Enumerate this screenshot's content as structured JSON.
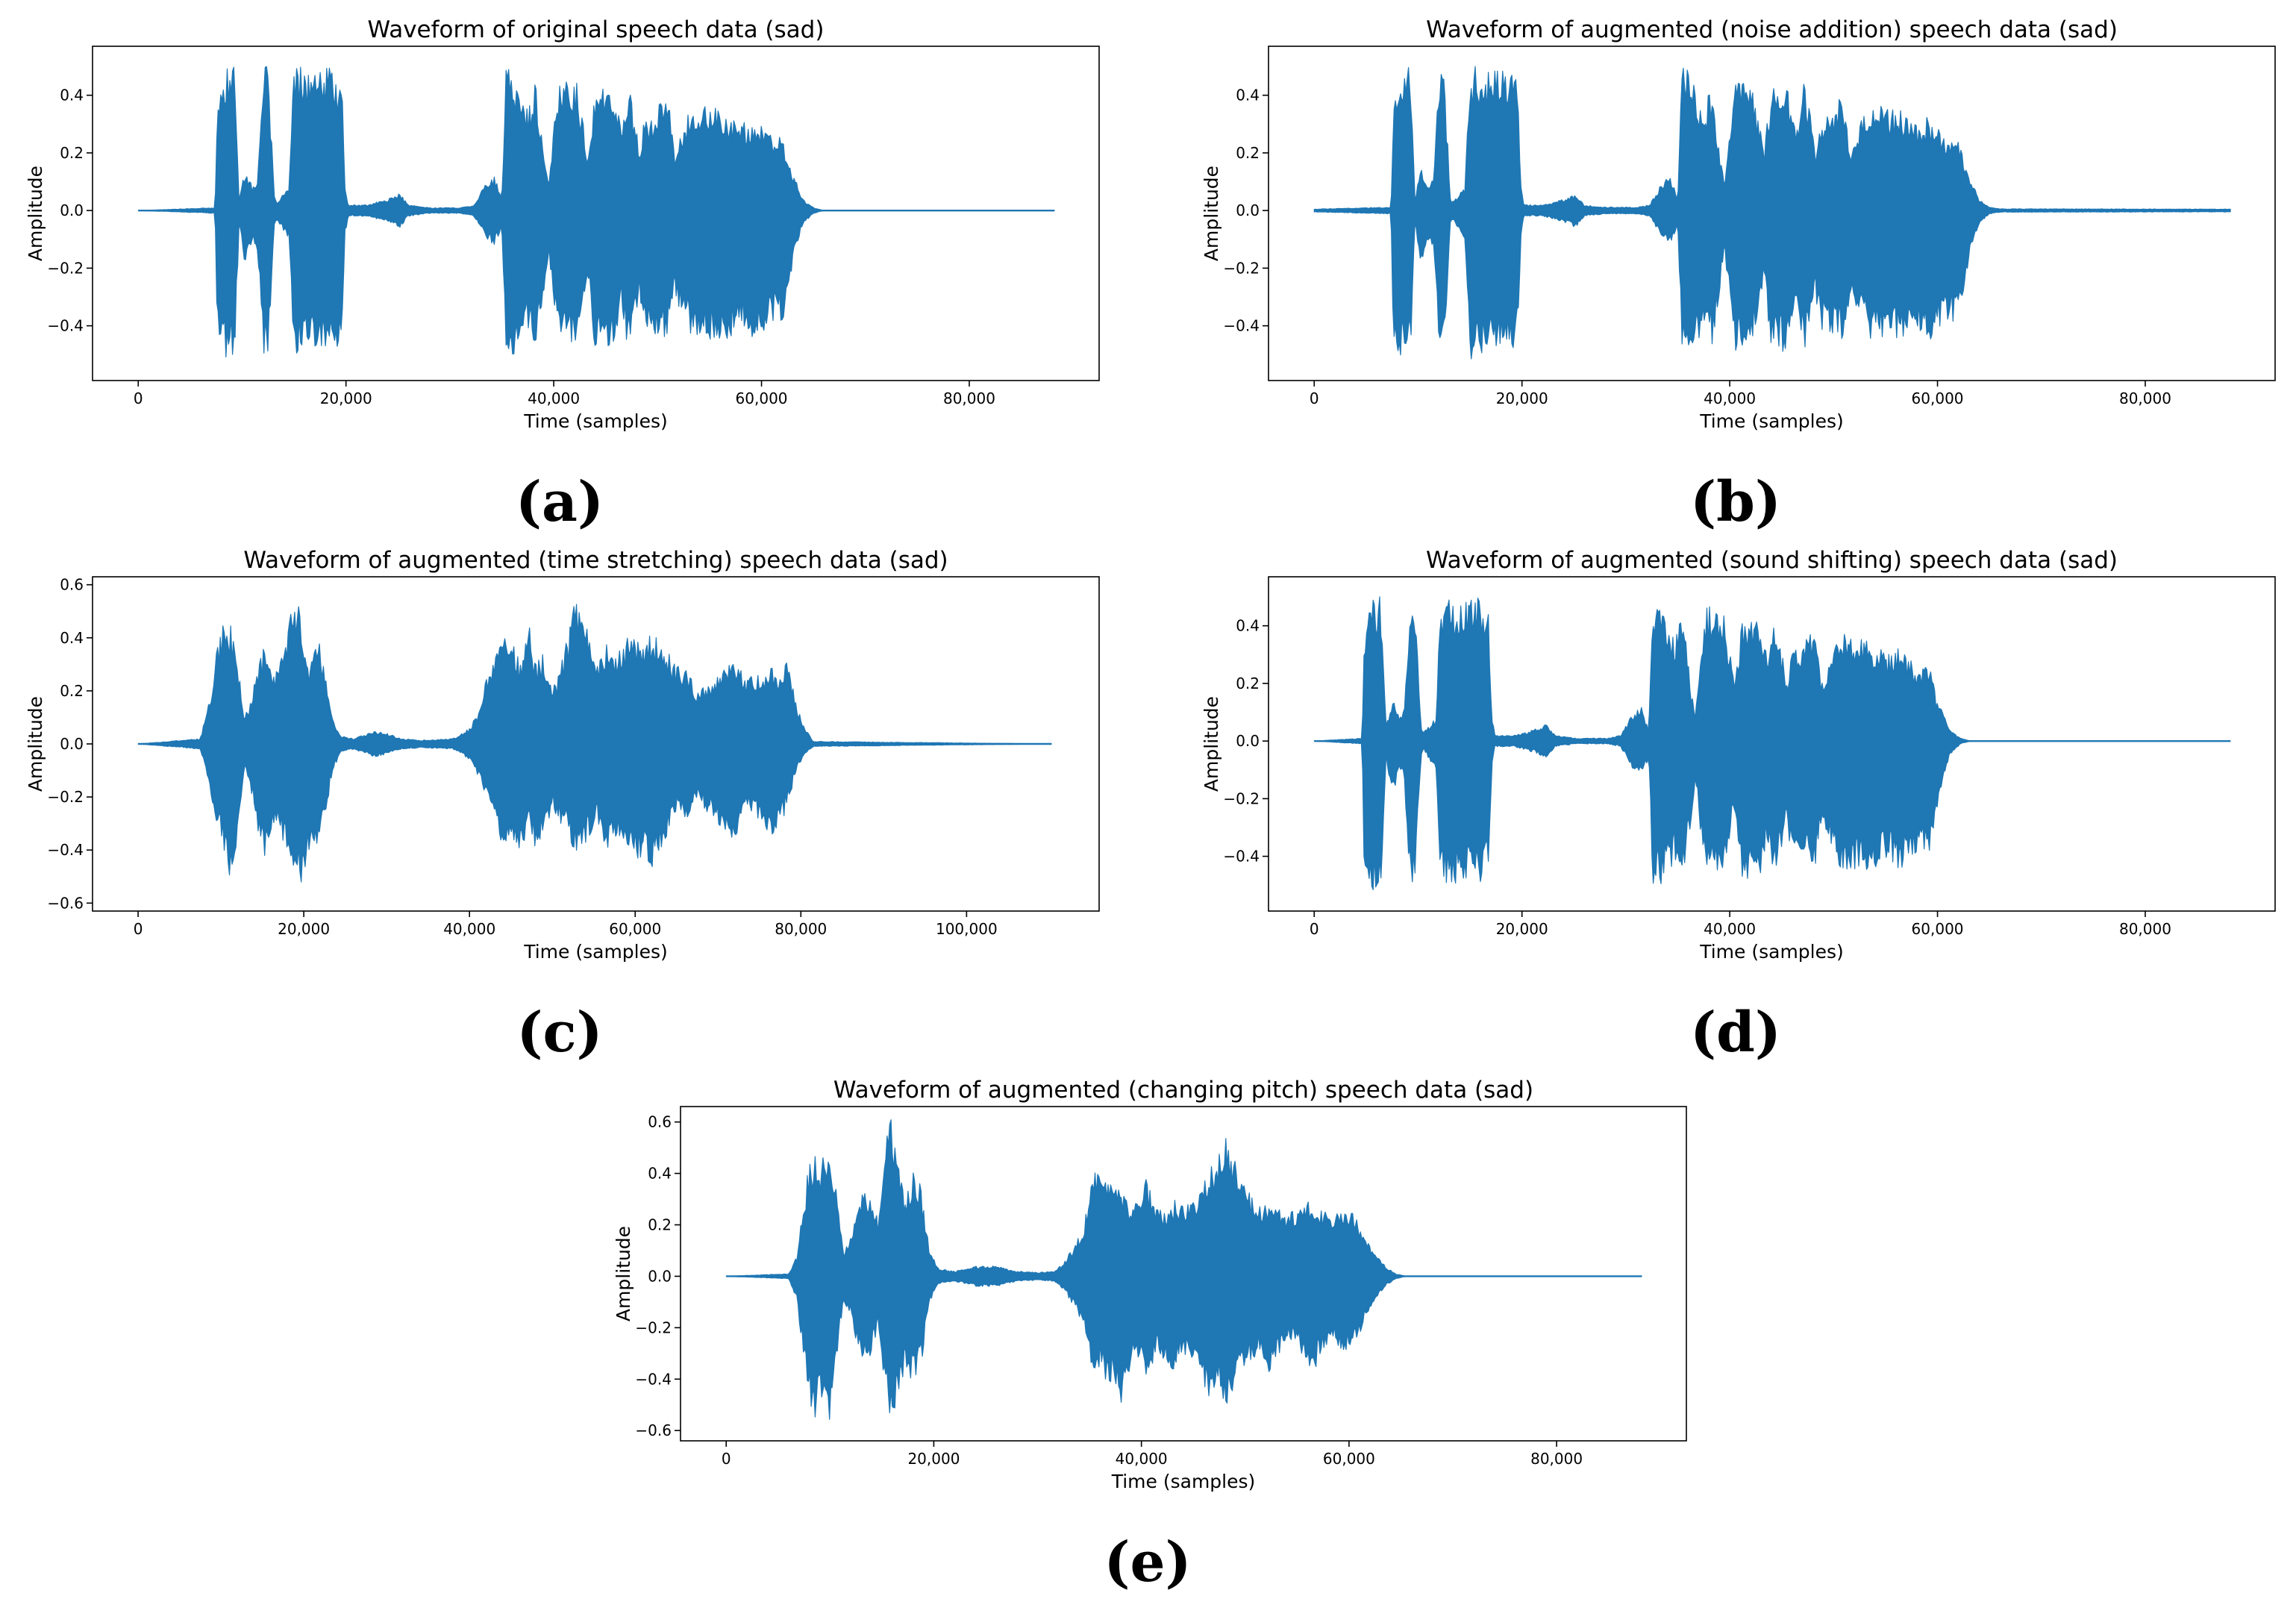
{
  "colors": {
    "wave": "#1f77b4",
    "axis": "#000000",
    "background": "#ffffff"
  },
  "chart_data": [
    {
      "id": "a",
      "type": "line",
      "panel_label": "(a)",
      "title": "Waveform of original speech data (sad)",
      "xlabel": "Time (samples)",
      "ylabel": "Amplitude",
      "xlim": [
        -4400,
        92500
      ],
      "ylim": [
        -0.59,
        0.57
      ],
      "xticks": [
        0,
        20000,
        40000,
        60000,
        80000
      ],
      "xtick_labels": [
        "0",
        "20,000",
        "40,000",
        "60,000",
        "80,000"
      ],
      "yticks": [
        -0.4,
        -0.2,
        0.0,
        0.2,
        0.4
      ],
      "ytick_labels": [
        "−0.4",
        "−0.2",
        "0.0",
        "0.2",
        "0.4"
      ],
      "series_extent": [
        0,
        88200
      ],
      "envelope_x": [
        0,
        7400,
        7600,
        8200,
        9300,
        9700,
        10300,
        11000,
        11500,
        12000,
        12500,
        13100,
        13300,
        14500,
        15000,
        15800,
        17000,
        18500,
        19600,
        19900,
        20200,
        22000,
        24000,
        25200,
        26000,
        28000,
        31000,
        32300,
        33500,
        34300,
        35000,
        35400,
        36000,
        37500,
        38300,
        39000,
        39500,
        40500,
        41500,
        42200,
        43300,
        44000,
        44500,
        45500,
        46500,
        47200,
        48300,
        48700,
        50000,
        51000,
        51600,
        52500,
        53300,
        54000,
        55000,
        56500,
        58000,
        59000,
        60300,
        61300,
        62000,
        62700,
        63200,
        64000,
        65000,
        66000,
        88200
      ],
      "envelope_upper": [
        0.0,
        0.01,
        0.33,
        0.51,
        0.5,
        0.05,
        0.15,
        0.08,
        0.12,
        0.5,
        0.5,
        0.05,
        0.03,
        0.08,
        0.5,
        0.5,
        0.48,
        0.5,
        0.45,
        0.09,
        0.02,
        0.02,
        0.04,
        0.06,
        0.02,
        0.01,
        0.01,
        0.02,
        0.1,
        0.12,
        0.04,
        0.5,
        0.5,
        0.35,
        0.46,
        0.2,
        0.1,
        0.47,
        0.46,
        0.45,
        0.2,
        0.45,
        0.42,
        0.44,
        0.3,
        0.47,
        0.2,
        0.32,
        0.36,
        0.41,
        0.2,
        0.3,
        0.36,
        0.38,
        0.36,
        0.35,
        0.3,
        0.33,
        0.28,
        0.25,
        0.27,
        0.15,
        0.12,
        0.04,
        0.01,
        0.0,
        0.0
      ],
      "envelope_lower": [
        0.0,
        -0.01,
        -0.43,
        -0.52,
        -0.51,
        -0.05,
        -0.2,
        -0.1,
        -0.15,
        -0.5,
        -0.5,
        -0.05,
        -0.03,
        -0.1,
        -0.52,
        -0.51,
        -0.48,
        -0.51,
        -0.46,
        -0.09,
        -0.02,
        -0.02,
        -0.04,
        -0.06,
        -0.02,
        -0.01,
        -0.01,
        -0.02,
        -0.1,
        -0.12,
        -0.06,
        -0.5,
        -0.51,
        -0.42,
        -0.48,
        -0.3,
        -0.15,
        -0.49,
        -0.47,
        -0.45,
        -0.25,
        -0.5,
        -0.48,
        -0.5,
        -0.35,
        -0.5,
        -0.3,
        -0.42,
        -0.44,
        -0.45,
        -0.3,
        -0.38,
        -0.44,
        -0.46,
        -0.45,
        -0.47,
        -0.4,
        -0.46,
        -0.42,
        -0.38,
        -0.4,
        -0.25,
        -0.15,
        -0.05,
        -0.01,
        0.0,
        0.0
      ]
    },
    {
      "id": "b",
      "type": "line",
      "panel_label": "(b)",
      "title": "Waveform of augmented (noise addition) speech data (sad)",
      "xlabel": "Time (samples)",
      "ylabel": "Amplitude",
      "xlim": [
        -4400,
        92500
      ],
      "ylim": [
        -0.59,
        0.57
      ],
      "xticks": [
        0,
        20000,
        40000,
        60000,
        80000
      ],
      "xtick_labels": [
        "0",
        "20,000",
        "40,000",
        "60,000",
        "80,000"
      ],
      "yticks": [
        -0.4,
        -0.2,
        0.0,
        0.2,
        0.4
      ],
      "ytick_labels": [
        "−0.4",
        "−0.2",
        "0.0",
        "0.2",
        "0.4"
      ],
      "series_extent": [
        0,
        88200
      ],
      "envelope_x": [
        0,
        7400,
        7600,
        8200,
        9300,
        9700,
        10300,
        11000,
        11500,
        12000,
        12500,
        13100,
        13300,
        14500,
        15000,
        15800,
        17000,
        18500,
        19600,
        19900,
        20200,
        22000,
        24000,
        25200,
        26000,
        28000,
        31000,
        32300,
        33500,
        34300,
        35000,
        35400,
        36000,
        37500,
        38300,
        39000,
        39500,
        40500,
        41500,
        42200,
        43300,
        44000,
        44500,
        45500,
        46500,
        47200,
        48300,
        48700,
        50000,
        51000,
        51600,
        52500,
        53300,
        54000,
        55000,
        56500,
        58000,
        59000,
        60300,
        61300,
        62000,
        62700,
        63200,
        64000,
        65000,
        66000,
        88200
      ],
      "envelope_upper": [
        0.005,
        0.012,
        0.33,
        0.51,
        0.5,
        0.05,
        0.15,
        0.08,
        0.12,
        0.5,
        0.5,
        0.05,
        0.03,
        0.08,
        0.5,
        0.5,
        0.48,
        0.5,
        0.45,
        0.09,
        0.02,
        0.02,
        0.04,
        0.06,
        0.02,
        0.012,
        0.012,
        0.02,
        0.1,
        0.12,
        0.04,
        0.5,
        0.5,
        0.35,
        0.46,
        0.2,
        0.1,
        0.47,
        0.46,
        0.45,
        0.2,
        0.45,
        0.42,
        0.44,
        0.3,
        0.47,
        0.2,
        0.32,
        0.36,
        0.41,
        0.2,
        0.3,
        0.36,
        0.38,
        0.36,
        0.35,
        0.3,
        0.33,
        0.28,
        0.25,
        0.27,
        0.15,
        0.12,
        0.04,
        0.012,
        0.006,
        0.005
      ],
      "envelope_lower": [
        -0.005,
        -0.012,
        -0.43,
        -0.52,
        -0.51,
        -0.05,
        -0.2,
        -0.1,
        -0.15,
        -0.5,
        -0.5,
        -0.05,
        -0.03,
        -0.1,
        -0.52,
        -0.51,
        -0.48,
        -0.51,
        -0.46,
        -0.09,
        -0.02,
        -0.02,
        -0.04,
        -0.06,
        -0.02,
        -0.012,
        -0.012,
        -0.02,
        -0.1,
        -0.12,
        -0.06,
        -0.5,
        -0.51,
        -0.42,
        -0.48,
        -0.3,
        -0.15,
        -0.49,
        -0.47,
        -0.45,
        -0.25,
        -0.5,
        -0.48,
        -0.5,
        -0.35,
        -0.5,
        -0.3,
        -0.42,
        -0.44,
        -0.45,
        -0.3,
        -0.38,
        -0.44,
        -0.46,
        -0.45,
        -0.47,
        -0.4,
        -0.46,
        -0.42,
        -0.38,
        -0.4,
        -0.25,
        -0.15,
        -0.05,
        -0.012,
        -0.006,
        -0.005
      ]
    },
    {
      "id": "c",
      "type": "line",
      "panel_label": "(c)",
      "title": "Waveform of augmented (time stretching) speech data (sad)",
      "xlabel": "Time (samples)",
      "ylabel": "Amplitude",
      "xlim": [
        -5500,
        116000
      ],
      "ylim": [
        -0.63,
        0.63
      ],
      "xticks": [
        0,
        20000,
        40000,
        60000,
        80000,
        100000
      ],
      "xtick_labels": [
        "0",
        "20,000",
        "40,000",
        "60,000",
        "80,000",
        "100,000"
      ],
      "yticks": [
        -0.6,
        -0.4,
        -0.2,
        0.0,
        0.2,
        0.4,
        0.6
      ],
      "ytick_labels": [
        "−0.6",
        "−0.4",
        "−0.2",
        "0.0",
        "0.2",
        "0.4",
        "0.6"
      ],
      "series_extent": [
        0,
        110250
      ],
      "envelope_x": [
        0,
        7500,
        8500,
        9500,
        10500,
        11200,
        12000,
        12800,
        13500,
        14500,
        15300,
        16200,
        17000,
        18000,
        19000,
        19800,
        20500,
        21500,
        22500,
        23500,
        24500,
        26000,
        28500,
        30000,
        32000,
        34000,
        38000,
        40000,
        41000,
        42500,
        43500,
        44500,
        45300,
        46200,
        47200,
        48000,
        49000,
        50000,
        51000,
        52000,
        52600,
        53300,
        54500,
        55500,
        56500,
        58000,
        59500,
        61000,
        62000,
        63000,
        64000,
        65000,
        66500,
        67200,
        68500,
        70000,
        71500,
        72500,
        73500,
        75000,
        76500,
        77500,
        78300,
        79500,
        80500,
        81500,
        110250
      ],
      "envelope_upper": [
        0.0,
        0.02,
        0.15,
        0.35,
        0.5,
        0.45,
        0.33,
        0.1,
        0.15,
        0.3,
        0.38,
        0.25,
        0.3,
        0.45,
        0.55,
        0.5,
        0.3,
        0.45,
        0.28,
        0.1,
        0.03,
        0.02,
        0.05,
        0.04,
        0.02,
        0.015,
        0.02,
        0.06,
        0.12,
        0.3,
        0.4,
        0.48,
        0.4,
        0.3,
        0.45,
        0.3,
        0.35,
        0.2,
        0.3,
        0.43,
        0.58,
        0.5,
        0.42,
        0.3,
        0.38,
        0.35,
        0.42,
        0.38,
        0.42,
        0.4,
        0.35,
        0.3,
        0.28,
        0.2,
        0.22,
        0.27,
        0.3,
        0.33,
        0.24,
        0.28,
        0.29,
        0.27,
        0.31,
        0.15,
        0.06,
        0.01,
        0.0
      ],
      "envelope_lower": [
        0.0,
        -0.02,
        -0.15,
        -0.3,
        -0.45,
        -0.55,
        -0.4,
        -0.1,
        -0.15,
        -0.35,
        -0.45,
        -0.3,
        -0.35,
        -0.4,
        -0.5,
        -0.57,
        -0.4,
        -0.45,
        -0.3,
        -0.1,
        -0.03,
        -0.02,
        -0.05,
        -0.04,
        -0.02,
        -0.015,
        -0.02,
        -0.06,
        -0.12,
        -0.25,
        -0.35,
        -0.4,
        -0.38,
        -0.42,
        -0.3,
        -0.4,
        -0.35,
        -0.25,
        -0.3,
        -0.35,
        -0.4,
        -0.45,
        -0.35,
        -0.3,
        -0.4,
        -0.35,
        -0.45,
        -0.42,
        -0.47,
        -0.4,
        -0.35,
        -0.25,
        -0.3,
        -0.2,
        -0.25,
        -0.3,
        -0.38,
        -0.35,
        -0.25,
        -0.3,
        -0.35,
        -0.3,
        -0.25,
        -0.1,
        -0.04,
        -0.01,
        0.0
      ]
    },
    {
      "id": "d",
      "type": "line",
      "panel_label": "(d)",
      "title": "Waveform of augmented (sound shifting) speech data (sad)",
      "xlabel": "Time (samples)",
      "ylabel": "Amplitude",
      "xlim": [
        -4400,
        92500
      ],
      "ylim": [
        -0.59,
        0.57
      ],
      "xticks": [
        0,
        20000,
        40000,
        60000,
        80000
      ],
      "xtick_labels": [
        "0",
        "20,000",
        "40,000",
        "60,000",
        "80,000"
      ],
      "yticks": [
        -0.4,
        -0.2,
        0.0,
        0.2,
        0.4
      ],
      "ytick_labels": [
        "−0.4",
        "−0.2",
        "0.0",
        "0.2",
        "0.4"
      ],
      "series_extent": [
        0,
        88200
      ],
      "envelope_x": [
        0,
        4600,
        4800,
        5400,
        6500,
        6900,
        7500,
        8200,
        8700,
        9200,
        9700,
        10300,
        10500,
        11700,
        12200,
        13000,
        14200,
        15700,
        16800,
        17100,
        17400,
        19200,
        21200,
        22400,
        23200,
        25200,
        28200,
        29500,
        30700,
        31500,
        32200,
        32600,
        33200,
        34700,
        35500,
        36200,
        36700,
        37700,
        38700,
        39400,
        40500,
        41200,
        41700,
        42700,
        43700,
        44400,
        45500,
        45900,
        47200,
        48200,
        48800,
        49700,
        50500,
        51200,
        52200,
        53700,
        55200,
        56200,
        57500,
        58500,
        59200,
        59900,
        60400,
        61200,
        62200,
        63200,
        88200
      ],
      "envelope_upper": [
        0.0,
        0.01,
        0.33,
        0.51,
        0.5,
        0.05,
        0.15,
        0.08,
        0.12,
        0.5,
        0.5,
        0.05,
        0.03,
        0.08,
        0.5,
        0.5,
        0.48,
        0.5,
        0.45,
        0.09,
        0.02,
        0.02,
        0.04,
        0.06,
        0.02,
        0.01,
        0.01,
        0.02,
        0.1,
        0.12,
        0.04,
        0.5,
        0.5,
        0.35,
        0.46,
        0.2,
        0.1,
        0.47,
        0.46,
        0.45,
        0.2,
        0.45,
        0.42,
        0.44,
        0.3,
        0.47,
        0.2,
        0.32,
        0.36,
        0.41,
        0.2,
        0.3,
        0.36,
        0.38,
        0.36,
        0.35,
        0.3,
        0.33,
        0.28,
        0.25,
        0.27,
        0.15,
        0.12,
        0.04,
        0.01,
        0.0,
        0.0
      ],
      "envelope_lower": [
        0.0,
        -0.01,
        -0.43,
        -0.52,
        -0.51,
        -0.05,
        -0.2,
        -0.1,
        -0.15,
        -0.5,
        -0.5,
        -0.05,
        -0.03,
        -0.1,
        -0.52,
        -0.51,
        -0.48,
        -0.51,
        -0.46,
        -0.09,
        -0.02,
        -0.02,
        -0.04,
        -0.06,
        -0.02,
        -0.01,
        -0.01,
        -0.02,
        -0.1,
        -0.12,
        -0.06,
        -0.5,
        -0.51,
        -0.42,
        -0.48,
        -0.3,
        -0.15,
        -0.49,
        -0.47,
        -0.45,
        -0.25,
        -0.5,
        -0.48,
        -0.5,
        -0.35,
        -0.5,
        -0.3,
        -0.42,
        -0.44,
        -0.45,
        -0.3,
        -0.38,
        -0.44,
        -0.46,
        -0.45,
        -0.47,
        -0.4,
        -0.46,
        -0.42,
        -0.38,
        -0.4,
        -0.25,
        -0.15,
        -0.05,
        -0.01,
        0.0,
        0.0
      ]
    },
    {
      "id": "e",
      "type": "line",
      "panel_label": "(e)",
      "title": "Waveform of augmented (changing pitch) speech data (sad)",
      "xlabel": "Time (samples)",
      "ylabel": "Amplitude",
      "xlim": [
        -4400,
        92500
      ],
      "ylim": [
        -0.64,
        0.66
      ],
      "xticks": [
        0,
        20000,
        40000,
        60000,
        80000
      ],
      "xtick_labels": [
        "0",
        "20,000",
        "40,000",
        "60,000",
        "80,000"
      ],
      "yticks": [
        -0.6,
        -0.4,
        -0.2,
        0.0,
        0.2,
        0.4,
        0.6
      ],
      "ytick_labels": [
        "−0.6",
        "−0.4",
        "−0.2",
        "0.0",
        "0.2",
        "0.4",
        "0.6"
      ],
      "series_extent": [
        0,
        88200
      ],
      "envelope_x": [
        0,
        6000,
        6800,
        7500,
        8000,
        8500,
        9000,
        10000,
        10700,
        11300,
        12000,
        12500,
        13300,
        14000,
        14600,
        15300,
        15900,
        16500,
        17300,
        18000,
        18800,
        19600,
        20500,
        22000,
        24000,
        26000,
        28000,
        30000,
        31500,
        32500,
        33500,
        34500,
        35300,
        36000,
        36700,
        37300,
        38000,
        38700,
        39500,
        40500,
        41500,
        42300,
        43200,
        44000,
        45000,
        45800,
        46500,
        47500,
        48300,
        49200,
        50300,
        51300,
        52200,
        53300,
        54300,
        55300,
        56500,
        57300,
        58300,
        59500,
        60500,
        61500,
        62500,
        63500,
        64500,
        65500,
        88200
      ],
      "envelope_upper": [
        0.0,
        0.01,
        0.08,
        0.3,
        0.45,
        0.48,
        0.42,
        0.55,
        0.3,
        0.1,
        0.15,
        0.25,
        0.35,
        0.33,
        0.22,
        0.55,
        0.63,
        0.45,
        0.3,
        0.42,
        0.35,
        0.1,
        0.03,
        0.02,
        0.04,
        0.04,
        0.02,
        0.015,
        0.02,
        0.05,
        0.12,
        0.2,
        0.45,
        0.42,
        0.4,
        0.33,
        0.35,
        0.28,
        0.31,
        0.38,
        0.27,
        0.25,
        0.3,
        0.28,
        0.3,
        0.35,
        0.42,
        0.48,
        0.56,
        0.45,
        0.33,
        0.28,
        0.3,
        0.26,
        0.25,
        0.27,
        0.3,
        0.27,
        0.24,
        0.26,
        0.25,
        0.15,
        0.1,
        0.04,
        0.01,
        0.0,
        0.0
      ],
      "envelope_lower": [
        0.0,
        -0.01,
        -0.1,
        -0.35,
        -0.5,
        -0.57,
        -0.5,
        -0.58,
        -0.3,
        -0.1,
        -0.15,
        -0.25,
        -0.35,
        -0.3,
        -0.2,
        -0.45,
        -0.6,
        -0.5,
        -0.35,
        -0.42,
        -0.35,
        -0.1,
        -0.03,
        -0.02,
        -0.04,
        -0.04,
        -0.02,
        -0.015,
        -0.02,
        -0.05,
        -0.12,
        -0.2,
        -0.4,
        -0.35,
        -0.45,
        -0.38,
        -0.5,
        -0.4,
        -0.3,
        -0.4,
        -0.3,
        -0.35,
        -0.4,
        -0.3,
        -0.35,
        -0.42,
        -0.5,
        -0.45,
        -0.52,
        -0.4,
        -0.35,
        -0.3,
        -0.38,
        -0.3,
        -0.25,
        -0.3,
        -0.4,
        -0.3,
        -0.25,
        -0.3,
        -0.28,
        -0.18,
        -0.1,
        -0.04,
        -0.01,
        0.0,
        0.0
      ]
    }
  ]
}
